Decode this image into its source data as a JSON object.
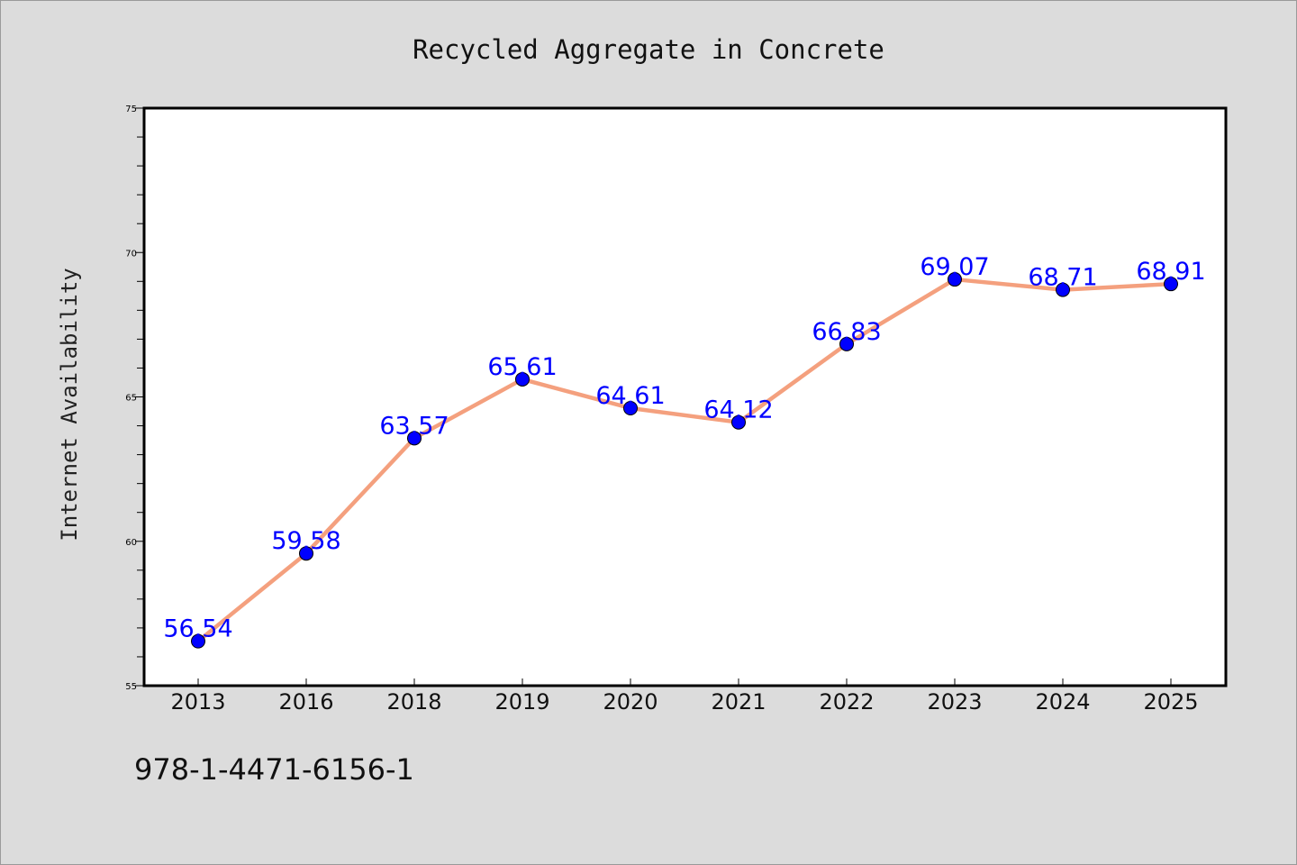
{
  "chart_data": {
    "type": "line",
    "title": "Recycled Aggregate in Concrete",
    "xlabel": "",
    "ylabel": "Internet Availability",
    "categories": [
      "2013",
      "2016",
      "2018",
      "2019",
      "2020",
      "2021",
      "2022",
      "2023",
      "2024",
      "2025"
    ],
    "series": [
      {
        "values": [
          56.54,
          59.58,
          63.57,
          65.61,
          64.61,
          64.12,
          66.83,
          69.07,
          68.71,
          68.91
        ],
        "data_labels": [
          "56.54",
          "59.58",
          "63.57",
          "65.61",
          "64.61",
          "64.12",
          "66.83",
          "69.07",
          "68.71",
          "68.91"
        ],
        "line_color": "#f4a07e",
        "marker_color": "#0000ff"
      }
    ],
    "ylim": [
      55,
      75
    ],
    "yticks": [
      "55",
      "60",
      "65",
      "70",
      "75"
    ],
    "grid": false,
    "legend": "none",
    "label_color": "#0000ff",
    "background_color": "#dcdcdc",
    "plot_background": "#ffffff"
  },
  "footer_text": "978-1-4471-6156-1"
}
